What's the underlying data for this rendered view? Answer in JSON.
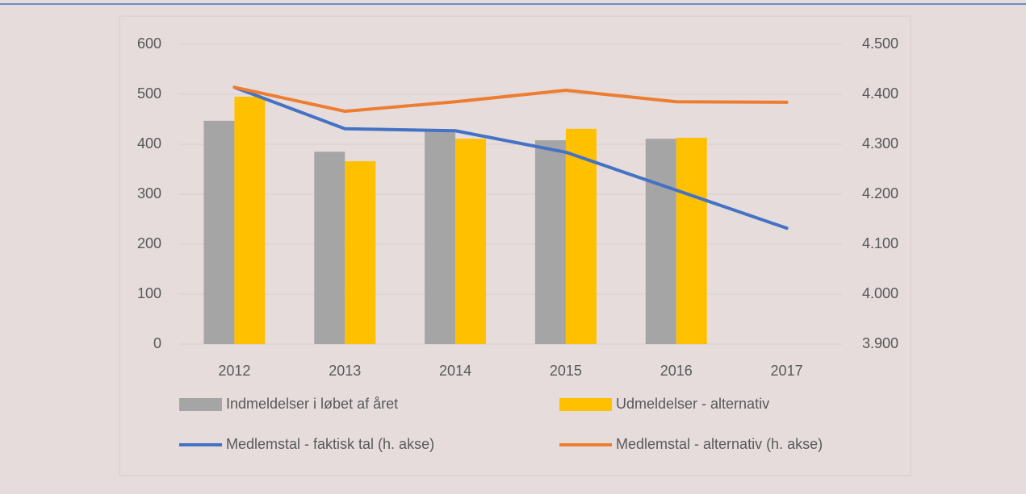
{
  "chart_data": {
    "type": "bar+line",
    "categories": [
      "2012",
      "2013",
      "2014",
      "2015",
      "2016",
      "2017"
    ],
    "series": [
      {
        "name": "Indmeldelser i løbet af året",
        "type": "bar",
        "color": "#a5a5a5",
        "values": [
          447,
          385,
          426,
          408,
          411,
          null
        ]
      },
      {
        "name": "Udmeldelser - alternativ",
        "type": "bar",
        "color": "#ffc000",
        "values": [
          495,
          366,
          411,
          431,
          413,
          null
        ]
      },
      {
        "name": "Medlemstal - faktisk tal (h. akse)",
        "type": "line",
        "axis": "y2",
        "color": "#4472c4",
        "values": [
          4414,
          4331,
          4327,
          4284,
          4208,
          4132
        ]
      },
      {
        "name": "Medlemstal - alternativ (h. akse)",
        "type": "line",
        "axis": "y2",
        "color": "#ed7d31",
        "values": [
          4414,
          4366,
          4385,
          4408,
          4385,
          4384
        ]
      }
    ],
    "ylim": [
      0,
      600
    ],
    "yticks": [
      0,
      100,
      200,
      300,
      400,
      500,
      600
    ],
    "y2lim": [
      3900,
      4500
    ],
    "y2ticks": [
      {
        "value": 3900,
        "label": "3.900"
      },
      {
        "value": 4000,
        "label": "4.000"
      },
      {
        "value": 4100,
        "label": "4.100"
      },
      {
        "value": 4200,
        "label": "4.200"
      },
      {
        "value": 4300,
        "label": "4.300"
      },
      {
        "value": 4400,
        "label": "4.400"
      },
      {
        "value": 4500,
        "label": "4.500"
      }
    ],
    "grid": true,
    "legend": "bottom"
  }
}
